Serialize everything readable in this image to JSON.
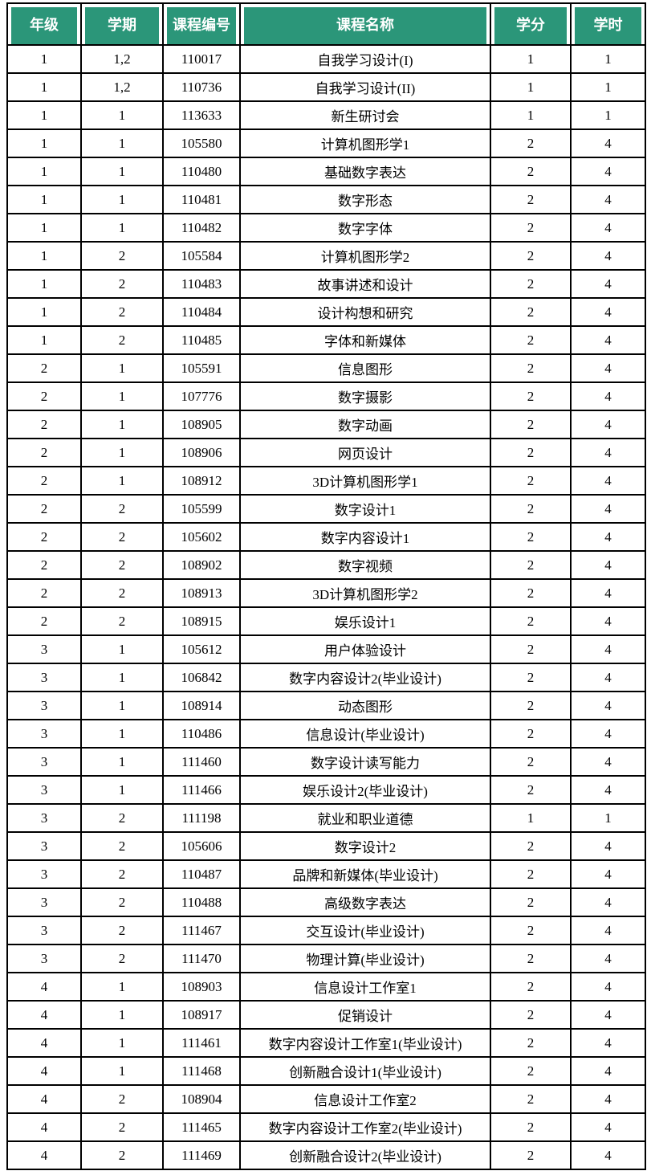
{
  "colors": {
    "header_bg": "#2b9679",
    "header_text": "#ffffff",
    "grid_border": "#000000",
    "body_text": "#000000",
    "row_bg": "#ffffff"
  },
  "table": {
    "columns": [
      {
        "key": "grade",
        "label": "年级"
      },
      {
        "key": "semester",
        "label": "学期"
      },
      {
        "key": "code",
        "label": "课程编号"
      },
      {
        "key": "name",
        "label": "课程名称"
      },
      {
        "key": "credits",
        "label": "学分"
      },
      {
        "key": "hours",
        "label": "学时"
      }
    ],
    "rows": [
      {
        "grade": "1",
        "semester": "1,2",
        "code": "110017",
        "name": "自我学习设计(I)",
        "credits": "1",
        "hours": "1"
      },
      {
        "grade": "1",
        "semester": "1,2",
        "code": "110736",
        "name": "自我学习设计(II)",
        "credits": "1",
        "hours": "1"
      },
      {
        "grade": "1",
        "semester": "1",
        "code": "113633",
        "name": "新生研讨会",
        "credits": "1",
        "hours": "1"
      },
      {
        "grade": "1",
        "semester": "1",
        "code": "105580",
        "name": "计算机图形学1",
        "credits": "2",
        "hours": "4"
      },
      {
        "grade": "1",
        "semester": "1",
        "code": "110480",
        "name": "基础数字表达",
        "credits": "2",
        "hours": "4"
      },
      {
        "grade": "1",
        "semester": "1",
        "code": "110481",
        "name": "数字形态",
        "credits": "2",
        "hours": "4"
      },
      {
        "grade": "1",
        "semester": "1",
        "code": "110482",
        "name": "数字字体",
        "credits": "2",
        "hours": "4"
      },
      {
        "grade": "1",
        "semester": "2",
        "code": "105584",
        "name": "计算机图形学2",
        "credits": "2",
        "hours": "4"
      },
      {
        "grade": "1",
        "semester": "2",
        "code": "110483",
        "name": "故事讲述和设计",
        "credits": "2",
        "hours": "4"
      },
      {
        "grade": "1",
        "semester": "2",
        "code": "110484",
        "name": "设计构想和研究",
        "credits": "2",
        "hours": "4"
      },
      {
        "grade": "1",
        "semester": "2",
        "code": "110485",
        "name": "字体和新媒体",
        "credits": "2",
        "hours": "4"
      },
      {
        "grade": "2",
        "semester": "1",
        "code": "105591",
        "name": "信息图形",
        "credits": "2",
        "hours": "4"
      },
      {
        "grade": "2",
        "semester": "1",
        "code": "107776",
        "name": "数字摄影",
        "credits": "2",
        "hours": "4"
      },
      {
        "grade": "2",
        "semester": "1",
        "code": "108905",
        "name": "数字动画",
        "credits": "2",
        "hours": "4"
      },
      {
        "grade": "2",
        "semester": "1",
        "code": "108906",
        "name": "网页设计",
        "credits": "2",
        "hours": "4"
      },
      {
        "grade": "2",
        "semester": "1",
        "code": "108912",
        "name": "3D计算机图形学1",
        "credits": "2",
        "hours": "4"
      },
      {
        "grade": "2",
        "semester": "2",
        "code": "105599",
        "name": "数字设计1",
        "credits": "2",
        "hours": "4"
      },
      {
        "grade": "2",
        "semester": "2",
        "code": "105602",
        "name": "数字内容设计1",
        "credits": "2",
        "hours": "4"
      },
      {
        "grade": "2",
        "semester": "2",
        "code": "108902",
        "name": "数字视频",
        "credits": "2",
        "hours": "4"
      },
      {
        "grade": "2",
        "semester": "2",
        "code": "108913",
        "name": "3D计算机图形学2",
        "credits": "2",
        "hours": "4"
      },
      {
        "grade": "2",
        "semester": "2",
        "code": "108915",
        "name": "娱乐设计1",
        "credits": "2",
        "hours": "4"
      },
      {
        "grade": "3",
        "semester": "1",
        "code": "105612",
        "name": "用户体验设计",
        "credits": "2",
        "hours": "4"
      },
      {
        "grade": "3",
        "semester": "1",
        "code": "106842",
        "name": "数字内容设计2(毕业设计)",
        "credits": "2",
        "hours": "4"
      },
      {
        "grade": "3",
        "semester": "1",
        "code": "108914",
        "name": "动态图形",
        "credits": "2",
        "hours": "4"
      },
      {
        "grade": "3",
        "semester": "1",
        "code": "110486",
        "name": "信息设计(毕业设计)",
        "credits": "2",
        "hours": "4"
      },
      {
        "grade": "3",
        "semester": "1",
        "code": "111460",
        "name": "数字设计读写能力",
        "credits": "2",
        "hours": "4"
      },
      {
        "grade": "3",
        "semester": "1",
        "code": "111466",
        "name": "娱乐设计2(毕业设计)",
        "credits": "2",
        "hours": "4"
      },
      {
        "grade": "3",
        "semester": "2",
        "code": "111198",
        "name": "就业和职业道德",
        "credits": "1",
        "hours": "1"
      },
      {
        "grade": "3",
        "semester": "2",
        "code": "105606",
        "name": "数字设计2",
        "credits": "2",
        "hours": "4"
      },
      {
        "grade": "3",
        "semester": "2",
        "code": "110487",
        "name": "品牌和新媒体(毕业设计)",
        "credits": "2",
        "hours": "4"
      },
      {
        "grade": "3",
        "semester": "2",
        "code": "110488",
        "name": "高级数字表达",
        "credits": "2",
        "hours": "4"
      },
      {
        "grade": "3",
        "semester": "2",
        "code": "111467",
        "name": "交互设计(毕业设计)",
        "credits": "2",
        "hours": "4"
      },
      {
        "grade": "3",
        "semester": "2",
        "code": "111470",
        "name": "物理计算(毕业设计)",
        "credits": "2",
        "hours": "4"
      },
      {
        "grade": "4",
        "semester": "1",
        "code": "108903",
        "name": "信息设计工作室1",
        "credits": "2",
        "hours": "4"
      },
      {
        "grade": "4",
        "semester": "1",
        "code": "108917",
        "name": "促销设计",
        "credits": "2",
        "hours": "4"
      },
      {
        "grade": "4",
        "semester": "1",
        "code": "111461",
        "name": "数字内容设计工作室1(毕业设计)",
        "credits": "2",
        "hours": "4"
      },
      {
        "grade": "4",
        "semester": "1",
        "code": "111468",
        "name": "创新融合设计1(毕业设计)",
        "credits": "2",
        "hours": "4"
      },
      {
        "grade": "4",
        "semester": "2",
        "code": "108904",
        "name": "信息设计工作室2",
        "credits": "2",
        "hours": "4"
      },
      {
        "grade": "4",
        "semester": "2",
        "code": "111465",
        "name": "数字内容设计工作室2(毕业设计)",
        "credits": "2",
        "hours": "4"
      },
      {
        "grade": "4",
        "semester": "2",
        "code": "111469",
        "name": "创新融合设计2(毕业设计)",
        "credits": "2",
        "hours": "4"
      }
    ]
  }
}
